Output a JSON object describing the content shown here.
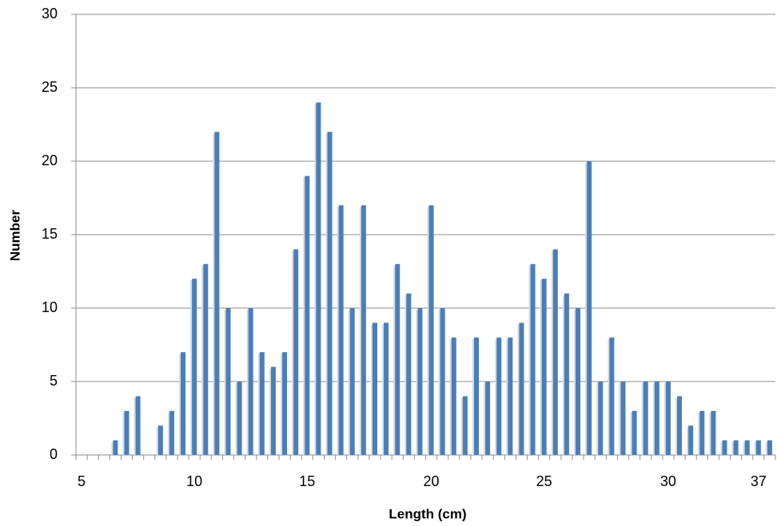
{
  "chart_data": {
    "type": "bar",
    "x_label": "Length (cm)",
    "y_label": "Number",
    "categories": [
      "5",
      null,
      null,
      null,
      null,
      null,
      null,
      null,
      null,
      null,
      "10",
      null,
      null,
      null,
      null,
      null,
      null,
      null,
      null,
      null,
      "15",
      null,
      null,
      null,
      null,
      null,
      null,
      null,
      null,
      null,
      null,
      "20",
      null,
      null,
      null,
      null,
      null,
      null,
      null,
      null,
      null,
      "25",
      null,
      null,
      null,
      null,
      null,
      null,
      null,
      null,
      null,
      null,
      "30",
      null,
      null,
      null,
      null,
      null,
      null,
      null,
      "37",
      null
    ],
    "values": [
      0,
      0,
      0,
      1,
      3,
      4,
      0,
      2,
      3,
      7,
      12,
      13,
      22,
      10,
      5,
      10,
      7,
      6,
      7,
      14,
      19,
      24,
      22,
      17,
      10,
      17,
      9,
      9,
      13,
      11,
      10,
      17,
      10,
      8,
      4,
      8,
      5,
      8,
      8,
      9,
      13,
      12,
      14,
      11,
      10,
      20,
      5,
      8,
      5,
      3,
      5,
      5,
      5,
      4,
      2,
      3,
      3,
      1,
      1,
      1,
      1,
      1
    ],
    "color": "#4a7ebb",
    "ylim": [
      0,
      30
    ],
    "yticks": [
      0,
      5,
      10,
      15,
      20,
      25,
      30
    ],
    "grid": true
  }
}
